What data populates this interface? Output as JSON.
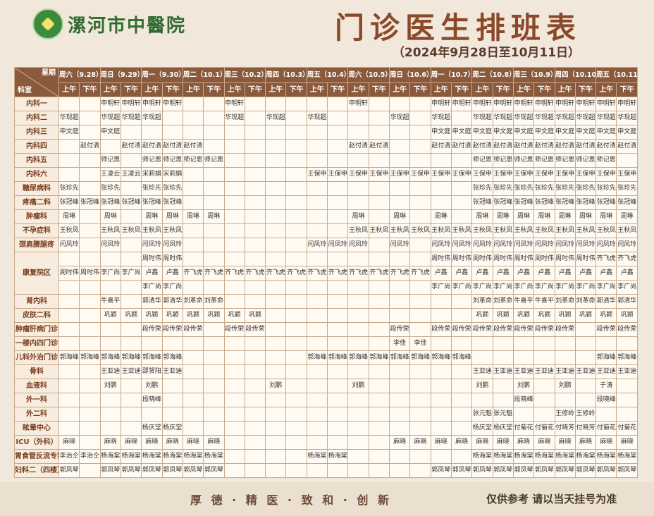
{
  "header": {
    "hospital": "漯河市中醫院",
    "title": "门诊医生排班表",
    "subtitle": "（2024年9月28日至10月11日）"
  },
  "table": {
    "corner_top": "星期",
    "corner_bottom": "科室",
    "days": [
      "周六（9.28）",
      "周日（9.29）",
      "周一（9.30）",
      "周二（10.1）",
      "周三（10.2）",
      "周四（10.3）",
      "周五（10.4）",
      "周六（10.5）",
      "周日（10.6）",
      "周一（10.7）",
      "周二（10.8）",
      "周三（10.9）",
      "周四（10.10）",
      "周五（10.11）"
    ],
    "halves": [
      "上午",
      "下午"
    ],
    "rows": [
      {
        "department": "内科一",
        "slots": [
          null,
          null,
          "申明轩",
          "申明轩",
          "申明轩",
          "申明轩",
          null,
          null,
          "申明轩",
          null,
          null,
          null,
          null,
          null,
          "申明轩",
          null,
          null,
          null,
          "申明轩",
          "申明轩",
          "申明轩",
          "申明轩",
          "申明轩",
          "申明轩",
          "申明轩",
          "申明轩",
          "申明轩",
          "申明轩"
        ]
      },
      {
        "department": "内科二",
        "slots": [
          "华现超",
          null,
          "华现超",
          "华现超",
          "华现超",
          null,
          null,
          null,
          "华现超",
          null,
          "华现超",
          null,
          "华现超",
          null,
          null,
          null,
          "华现超",
          null,
          "华现超",
          null,
          "华现超",
          "华现超",
          "华现超",
          "华现超",
          "华现超",
          "华现超",
          "华现超",
          "华现超"
        ]
      },
      {
        "department": "内科三",
        "slots": [
          "申文庭",
          null,
          "申文庭",
          null,
          null,
          null,
          null,
          null,
          null,
          null,
          null,
          null,
          null,
          null,
          null,
          null,
          null,
          null,
          "申文庭",
          "申文庭",
          "申文庭",
          "申文庭",
          "申文庭",
          "申文庭",
          "申文庭",
          "申文庭",
          "申文庭",
          "申文庭"
        ]
      },
      {
        "department": "内科四",
        "slots": [
          null,
          "赵付清",
          null,
          "赵付清",
          "赵付清",
          "赵付清",
          "赵付清",
          null,
          null,
          null,
          null,
          null,
          null,
          null,
          "赵付清",
          "赵付清",
          null,
          null,
          "赵付清",
          "赵付清",
          "赵付清",
          "赵付清",
          "赵付清",
          "赵付清",
          "赵付清",
          "赵付清",
          "赵付清",
          "赵付清"
        ]
      },
      {
        "department": "内科五",
        "slots": [
          null,
          null,
          "师记恩",
          null,
          "师记恩",
          "师记恩",
          "师记恩",
          "师记恩",
          null,
          null,
          null,
          null,
          null,
          null,
          null,
          null,
          null,
          null,
          null,
          null,
          "师记恩",
          "师记恩",
          "师记恩",
          "师记恩",
          "师记恩",
          "师记恩",
          "师记恩",
          null
        ]
      },
      {
        "department": "内科六",
        "slots": [
          null,
          null,
          "王凌云",
          "王凌云",
          "宋莉娟",
          "宋莉娟",
          null,
          null,
          null,
          null,
          null,
          null,
          "王保申",
          "王保申",
          "王保申",
          "王保申",
          "王保申",
          "王保申",
          "王保申",
          "王保申",
          "王保申",
          "王保申",
          "王保申",
          "王保申",
          "王保申",
          "王保申",
          "王保申",
          "王保申"
        ]
      },
      {
        "department": "糖尿病科",
        "slots": [
          "张珍先",
          null,
          "张珍先",
          null,
          "张珍先",
          "张珍先",
          null,
          null,
          null,
          null,
          null,
          null,
          null,
          null,
          null,
          null,
          null,
          null,
          null,
          null,
          "张珍先",
          "张珍先",
          "张珍先",
          "张珍先",
          "张珍先",
          "张珍先",
          "张珍先",
          "张珍先"
        ]
      },
      {
        "department": "疼痛二科",
        "slots": [
          "张冠峰",
          "张冠峰",
          "张冠峰",
          "张冠峰",
          "张冠峰",
          "张冠峰",
          null,
          null,
          null,
          null,
          null,
          null,
          null,
          null,
          null,
          null,
          null,
          null,
          null,
          null,
          "张冠峰",
          "张冠峰",
          "张冠峰",
          "张冠峰",
          "张冠峰",
          "张冠峰",
          "张冠峰",
          "张冠峰"
        ]
      },
      {
        "department": "肿瘤科",
        "slots": [
          "周琳",
          null,
          "周琳",
          null,
          "周琳",
          "周琳",
          "周琳",
          "周琳",
          null,
          null,
          null,
          null,
          null,
          null,
          "周琳",
          null,
          "周琳",
          null,
          "周琳",
          null,
          "周琳",
          "周琳",
          "周琳",
          "周琳",
          "周琳",
          "周琳",
          "周琳",
          "周琳"
        ]
      },
      {
        "department": "不孕症科",
        "slots": [
          "王秋凤",
          null,
          "王秋凤",
          "王秋凤",
          "王秋凤",
          "王秋凤",
          null,
          null,
          null,
          null,
          null,
          null,
          null,
          null,
          "王秋凤",
          "王秋凤",
          "王秋凤",
          "王秋凤",
          "王秋凤",
          "王秋凤",
          "王秋凤",
          "王秋凤",
          "王秋凤",
          "王秋凤",
          "王秋凤",
          "王秋凤",
          "王秋凤",
          "王秋凤"
        ]
      },
      {
        "department": "颈肩腰腿疼",
        "slots": [
          "闫凤玲",
          null,
          "闫凤玲",
          null,
          "闫凤玲",
          "闫凤玲",
          null,
          null,
          null,
          null,
          null,
          null,
          "闫凤玲",
          "闫凤玲",
          "闫凤玲",
          null,
          "闫凤玲",
          null,
          "闫凤玲",
          "闫凤玲",
          "闫凤玲",
          "闫凤玲",
          "闫凤玲",
          "闫凤玲",
          "闫凤玲",
          "闫凤玲",
          "闫凤玲",
          "闫凤玲"
        ]
      },
      {
        "department": "康复院区",
        "lines": [
          [
            null,
            null,
            null,
            null,
            "周时伟",
            "周时伟",
            null,
            null,
            null,
            null,
            null,
            null,
            null,
            null,
            null,
            null,
            null,
            null,
            "周时伟",
            "周时伟",
            "周时伟",
            "周时伟",
            "周时伟",
            "周时伟",
            "周时伟",
            "周时伟",
            "齐飞虎",
            "齐飞虎"
          ],
          [
            "周时伟",
            "周时伟",
            "李广尚",
            "李广尚",
            "卢鑫",
            "卢鑫",
            "齐飞虎",
            "齐飞虎",
            "齐飞虎",
            "齐飞虎",
            "齐飞虎",
            "齐飞虎",
            "齐飞虎",
            "齐飞虎",
            "齐飞虎",
            "齐飞虎",
            "齐飞虎",
            "齐飞虎",
            "卢鑫",
            "卢鑫",
            "卢鑫",
            "卢鑫",
            "卢鑫",
            "卢鑫",
            "卢鑫",
            "卢鑫",
            "卢鑫",
            "卢鑫"
          ],
          [
            null,
            null,
            null,
            null,
            "李广尚",
            "李广尚",
            null,
            null,
            null,
            null,
            null,
            null,
            null,
            null,
            null,
            null,
            null,
            null,
            "李广尚",
            "李广尚",
            "李广尚",
            "李广尚",
            "李广尚",
            "李广尚",
            "李广尚",
            "李广尚",
            "李广尚",
            "李广尚"
          ]
        ]
      },
      {
        "department": "肾内科",
        "slots": [
          null,
          null,
          "牛喜平",
          null,
          "郭清华",
          "郭清华",
          "刘革命",
          "刘革命",
          null,
          null,
          null,
          null,
          null,
          null,
          null,
          null,
          null,
          null,
          null,
          null,
          "刘革命",
          "刘革命",
          "牛喜平",
          "牛喜平",
          "刘革命",
          "刘革命",
          "郭清华",
          "郭清华"
        ]
      },
      {
        "department": "皮肤二科",
        "slots": [
          null,
          null,
          "巩颖",
          "巩颖",
          "巩颖",
          "巩颖",
          "巩颖",
          "巩颖",
          "巩颖",
          "巩颖",
          null,
          null,
          null,
          null,
          null,
          null,
          null,
          null,
          null,
          null,
          "巩颖",
          "巩颖",
          "巩颖",
          "巩颖",
          "巩颖",
          "巩颖",
          "巩颖",
          "巩颖"
        ]
      },
      {
        "department": "肿瘤肝病门诊",
        "slots": [
          null,
          null,
          null,
          null,
          "段传荣",
          "段传荣",
          "段传荣",
          null,
          "段传荣",
          "段传荣",
          null,
          null,
          null,
          null,
          null,
          null,
          "段传荣",
          null,
          "段传荣",
          "段传荣",
          "段传荣",
          "段传荣",
          "段传荣",
          "段传荣",
          "段传荣",
          null,
          "段传荣",
          "段传荣"
        ]
      },
      {
        "department": "一楼内四门诊",
        "slots": [
          null,
          null,
          null,
          null,
          null,
          null,
          null,
          null,
          null,
          null,
          null,
          null,
          null,
          null,
          null,
          null,
          "李佳",
          "李佳",
          null,
          null,
          null,
          null,
          null,
          null,
          null,
          null,
          null,
          null
        ]
      },
      {
        "department": "儿科外治门诊",
        "slots": [
          "郭海峰",
          "郭海峰",
          "郭海峰",
          "郭海峰",
          "郭海峰",
          "郭海峰",
          null,
          null,
          null,
          null,
          null,
          null,
          "郭海峰",
          "郭海峰",
          "郭海峰",
          "郭海峰",
          "郭海峰",
          "郭海峰",
          "郭海峰",
          "郭海峰",
          null,
          null,
          null,
          null,
          null,
          null,
          "郭海峰",
          "郭海峰"
        ]
      },
      {
        "department": "骨科",
        "slots": [
          null,
          null,
          "王亚迪",
          "王亚迪",
          "邵贺阳",
          "王亚迪",
          null,
          null,
          null,
          null,
          null,
          null,
          null,
          null,
          null,
          null,
          null,
          null,
          null,
          null,
          "王亚迪",
          "王亚迪",
          "王亚迪",
          "王亚迪",
          "王亚迪",
          "王亚迪",
          "王亚迪",
          "王亚迪"
        ]
      },
      {
        "department": "血液科",
        "slots": [
          null,
          null,
          "刘鹏",
          null,
          "刘鹏",
          null,
          null,
          null,
          null,
          null,
          "刘鹏",
          null,
          null,
          null,
          "刘鹏",
          null,
          null,
          null,
          null,
          null,
          "刘鹏",
          null,
          "刘鹏",
          null,
          "刘鹏",
          null,
          "于涛",
          null
        ]
      },
      {
        "department": "外一科",
        "slots": [
          null,
          null,
          null,
          null,
          "段晓峰",
          null,
          null,
          null,
          null,
          null,
          null,
          null,
          null,
          null,
          null,
          null,
          null,
          null,
          null,
          null,
          null,
          null,
          "段晓峰",
          null,
          null,
          null,
          "段晓峰",
          null
        ]
      },
      {
        "department": "外二科",
        "slots": [
          null,
          null,
          null,
          null,
          null,
          null,
          null,
          null,
          null,
          null,
          null,
          null,
          null,
          null,
          null,
          null,
          null,
          null,
          null,
          null,
          "张元魁",
          "张元魁",
          null,
          null,
          "王修岭",
          "王修岭",
          null,
          null
        ]
      },
      {
        "department": "眩晕中心",
        "slots": [
          null,
          null,
          null,
          null,
          "杨庆堂",
          "杨庆堂",
          null,
          null,
          null,
          null,
          null,
          null,
          null,
          null,
          null,
          null,
          null,
          null,
          null,
          null,
          "杨庆堂",
          "杨庆堂",
          "付菊花",
          "付菊花",
          "付晓芳",
          "付晓芳",
          "付菊花",
          "付菊花"
        ]
      },
      {
        "department": "ICU（外科）",
        "slots": [
          "麻晓",
          null,
          "麻晓",
          "麻晓",
          "麻晓",
          "麻晓",
          "麻晓",
          "麻晓",
          null,
          null,
          null,
          null,
          null,
          null,
          null,
          null,
          "麻晓",
          "麻晓",
          "麻晓",
          "麻晓",
          "麻晓",
          "麻晓",
          "麻晓",
          "麻晓",
          "麻晓",
          "麻晓",
          "麻晓",
          "麻晓"
        ]
      },
      {
        "department": "胃食管反流专家",
        "slots": [
          "李治仝",
          "李治仝",
          "杨海棠",
          "杨海棠",
          "杨海棠",
          "杨海棠",
          "杨海棠",
          "杨海棠",
          null,
          null,
          null,
          null,
          "杨海棠",
          "杨海棠",
          null,
          null,
          null,
          null,
          null,
          null,
          "杨海棠",
          "杨海棠",
          "杨海棠",
          "杨海棠",
          "杨海棠",
          "杨海棠",
          "杨海棠",
          "杨海棠"
        ]
      },
      {
        "department": "妇科二（四楼）",
        "slots": [
          "郭凤琴",
          null,
          "郭凤琴",
          "郭凤琴",
          "郭凤琴",
          "郭凤琴",
          "郭凤琴",
          "郭凤琴",
          null,
          null,
          null,
          null,
          null,
          null,
          null,
          null,
          null,
          null,
          "郭凤琴",
          "郭凤琴",
          "郭凤琴",
          "郭凤琴",
          "郭凤琴",
          "郭凤琴",
          "郭凤琴",
          "郭凤琴",
          "郭凤琴",
          "郭凤琴"
        ]
      }
    ]
  },
  "footer": {
    "motto": "厚 德 · 精 医 · 致 和 · 创 新",
    "notice": "仅供参考 请以当天挂号为准"
  }
}
